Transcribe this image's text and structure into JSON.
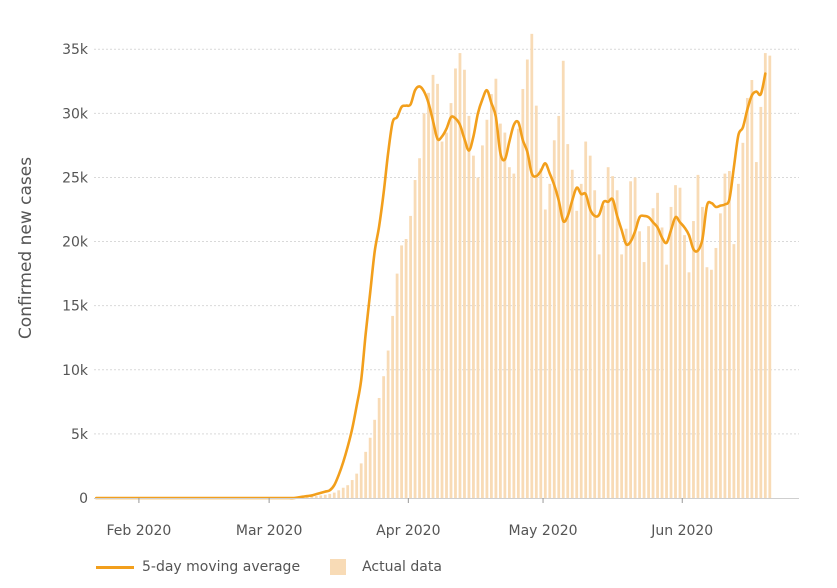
{
  "chart_data": {
    "type": "bar",
    "title": "",
    "xlabel": "",
    "ylabel": "Confirmed new cases",
    "ylim": [
      0,
      36500
    ],
    "yticks": [
      0,
      5000,
      10000,
      15000,
      20000,
      25000,
      30000,
      35000
    ],
    "ytick_labels": [
      "0",
      "5k",
      "10k",
      "15k",
      "20k",
      "25k",
      "30k",
      "35k"
    ],
    "xlim": [
      "2020-01-22",
      "2020-06-27"
    ],
    "xticks": [
      {
        "date": "2020-02-01",
        "label": "Feb 2020"
      },
      {
        "date": "2020-03-01",
        "label": "Mar 2020"
      },
      {
        "date": "2020-04-01",
        "label": "Apr 2020"
      },
      {
        "date": "2020-05-01",
        "label": "May 2020"
      },
      {
        "date": "2020-06-01",
        "label": "Jun 2020"
      }
    ],
    "grid": "horizontal-dotted",
    "legend_position": "bottom-left",
    "colors": {
      "line": "#f29f1c",
      "bars": "#f8dbb6",
      "grid": "#d9d9d9",
      "text": "#555555"
    },
    "series": [
      {
        "name": "Actual data",
        "kind": "bar",
        "start_date": "2020-01-22",
        "values": [
          0,
          0,
          0,
          0,
          0,
          0,
          0,
          0,
          0,
          0,
          0,
          0,
          0,
          0,
          0,
          0,
          0,
          0,
          0,
          0,
          0,
          0,
          0,
          0,
          0,
          0,
          0,
          0,
          0,
          0,
          0,
          0,
          0,
          0,
          0,
          0,
          0,
          0,
          0,
          0,
          0,
          0,
          0,
          0,
          50,
          60,
          80,
          100,
          120,
          150,
          200,
          250,
          320,
          420,
          600,
          800,
          1000,
          1400,
          1900,
          2700,
          3600,
          4700,
          6100,
          7800,
          9500,
          11500,
          14200,
          17500,
          19700,
          20200,
          22000,
          24800,
          26500,
          30000,
          31600,
          33000,
          32300,
          27800,
          28500,
          30800,
          33500,
          34700,
          33400,
          29800,
          26700,
          25000,
          27500,
          29500,
          31500,
          32700,
          29200,
          28500,
          25800,
          25300,
          28800,
          31900,
          34200,
          36200,
          30600,
          25700,
          22500,
          24500,
          27900,
          29800,
          34100,
          27600,
          25600,
          22400,
          24500,
          27800,
          26700,
          24000,
          19000,
          22800,
          25800,
          25100,
          24000,
          19000,
          21000,
          24700,
          25000,
          20800,
          18400,
          21200,
          22600,
          23800,
          21100,
          18200,
          22700,
          24400,
          24200,
          20500,
          17600,
          21600,
          25200,
          22700,
          18000,
          17800,
          19500,
          22200,
          25300,
          25500,
          19800,
          24500,
          27700,
          31200,
          32600,
          26200,
          30500,
          34700,
          34500
        ]
      },
      {
        "name": "5-day moving average",
        "kind": "line",
        "start_date": "2020-01-22",
        "values": [
          0,
          0,
          0,
          0,
          0,
          0,
          0,
          0,
          0,
          0,
          0,
          0,
          0,
          0,
          0,
          0,
          0,
          0,
          0,
          0,
          0,
          0,
          0,
          0,
          0,
          0,
          0,
          0,
          0,
          0,
          0,
          0,
          0,
          0,
          0,
          0,
          0,
          0,
          0,
          0,
          0,
          0,
          0,
          0,
          0,
          50,
          100,
          150,
          200,
          300,
          400,
          500,
          600,
          1000,
          1800,
          2800,
          4000,
          5400,
          7200,
          9200,
          12800,
          16000,
          19200,
          21200,
          23800,
          26900,
          29300,
          29700,
          30500,
          30600,
          30700,
          31800,
          32100,
          31700,
          30800,
          29400,
          28000,
          28200,
          28800,
          29700,
          29600,
          29100,
          28000,
          27100,
          28200,
          30000,
          31100,
          31800,
          30800,
          29700,
          26900,
          26400,
          27800,
          29100,
          29300,
          27900,
          27000,
          25300,
          25100,
          25500,
          26100,
          25300,
          24400,
          23200,
          21600,
          22000,
          23200,
          24200,
          23700,
          23700,
          22500,
          22000,
          22100,
          23100,
          23100,
          23300,
          22000,
          20900,
          19800,
          20000,
          20800,
          21900,
          22000,
          21900,
          21500,
          21100,
          20300,
          19900,
          20900,
          21900,
          21500,
          21100,
          20500,
          19400,
          19300,
          20200,
          22800,
          23000,
          22700,
          22800,
          22900,
          23300,
          25800,
          28300,
          28900,
          30300,
          31400,
          31700,
          31500,
          33100
        ]
      }
    ]
  }
}
